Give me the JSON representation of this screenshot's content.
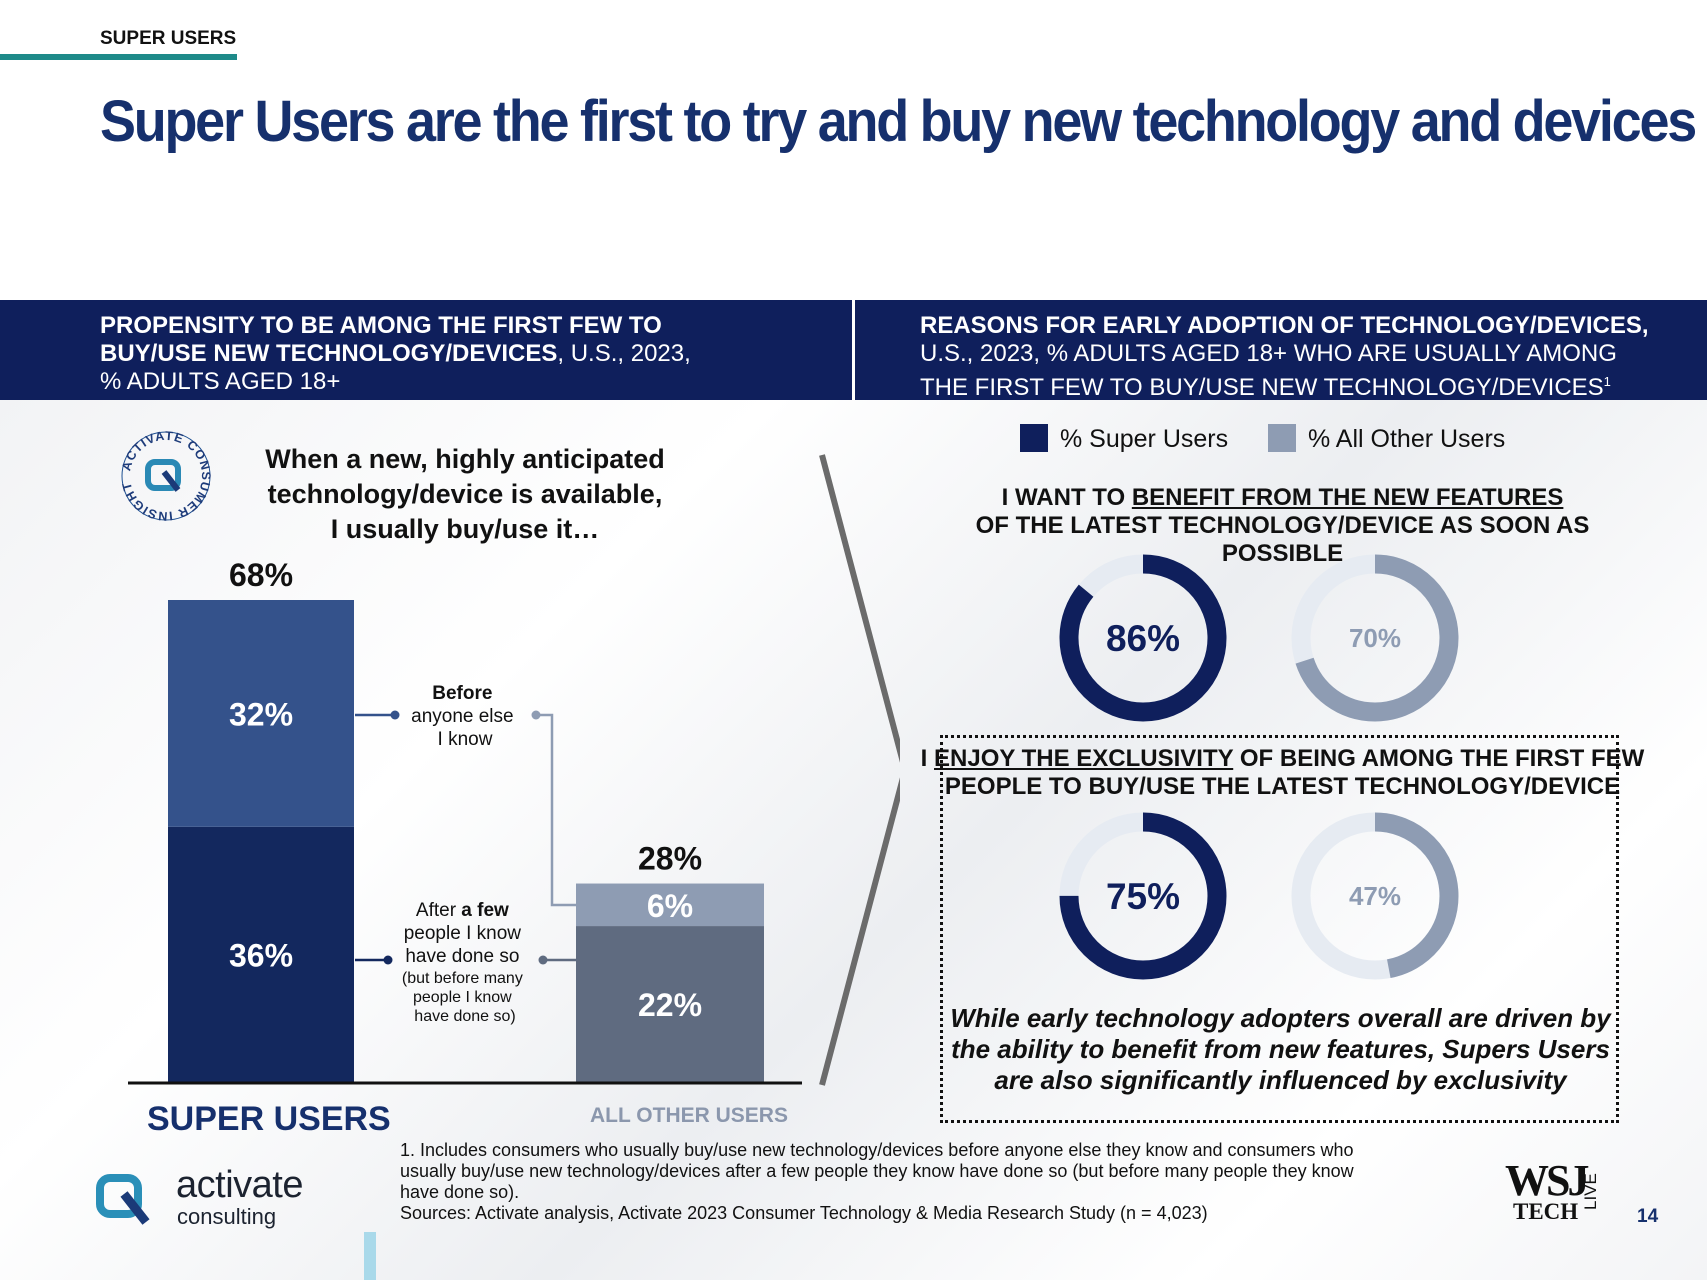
{
  "section_tag": "SUPER USERS",
  "title": "Super Users are the first to try and buy new technology and devices",
  "left_header": {
    "line1_bold": "PROPENSITY TO BE AMONG THE FIRST FEW TO",
    "line2_bold": "BUY/USE NEW TECHNOLOGY/DEVICES",
    "line2_rest": ", U.S., 2023,",
    "line3": "% ADULTS AGED 18+"
  },
  "right_header": {
    "line1_bold": "REASONS FOR EARLY ADOPTION OF TECHNOLOGY/DEVICES,",
    "line2": "U.S., 2023, % ADULTS AGED 18+ WHO ARE USUALLY AMONG",
    "line3": "THE FIRST FEW TO BUY/USE NEW TECHNOLOGY/DEVICES",
    "line3_sup": "1"
  },
  "badge": {
    "text": "ACTIVATE CONSUMER INSIGHT"
  },
  "question": {
    "line1": "When a new, highly anticipated",
    "line2": "technology/device is available,",
    "line3": "I usually buy/use it…"
  },
  "annotations": {
    "before_bold": "Before",
    "before_rest1": "anyone else",
    "before_rest2": "I know",
    "after_a": "After ",
    "after_bold": "a few",
    "after_line2": "people I know",
    "after_line3": "have done so",
    "after_small1": "(but before many",
    "after_small2": "people I know",
    "after_small3": "have done so)"
  },
  "legend": {
    "super": "% Super Users",
    "other": "% All Other Users",
    "super_color": "#0f1f5c",
    "other_color": "#8e9cb3"
  },
  "statement1": {
    "pre": "I WANT TO ",
    "underlined": "BENEFIT FROM THE NEW FEATURES",
    "line2": "OF THE LATEST TECHNOLOGY/DEVICE AS SOON AS POSSIBLE"
  },
  "statement2": {
    "pre": "I ",
    "underlined": "ENJOY THE EXCLUSIVITY",
    "post": " OF BEING AMONG THE FIRST FEW",
    "line2": "PEOPLE TO BUY/USE THE LATEST TECHNOLOGY/DEVICE"
  },
  "italic_note": {
    "line1": "While early technology adopters overall are driven by",
    "line2": "the ability to benefit from new features, Supers Users",
    "line3": "are also significantly influenced by exclusivity"
  },
  "footnote": {
    "line1": "1. Includes consumers who usually buy/use new technology/devices before anyone else they know and consumers who",
    "line2": "usually buy/use new technology/devices after a few people they know have done so (but before many people they know",
    "line3": "have done so).",
    "line4": "Sources: Activate analysis, Activate 2023 Consumer Technology & Media Research Study (n = 4,023)"
  },
  "logo": {
    "line1": "activate",
    "line2": "consulting"
  },
  "wsj": {
    "line1": "WSJ",
    "line2": "TECH",
    "vertical": "LIVE"
  },
  "page_number": "14",
  "chart_data": [
    {
      "type": "bar",
      "stacked": true,
      "categories": [
        "SUPER USERS",
        "ALL OTHER USERS"
      ],
      "series": [
        {
          "name": "After a few people I know have done so (but before many people I know have done so)",
          "values": [
            36,
            22
          ],
          "labels": [
            "36%",
            "22%"
          ],
          "colors": [
            "#13285e",
            "#5f6b80"
          ]
        },
        {
          "name": "Before anyone else I know",
          "values": [
            32,
            6
          ],
          "labels": [
            "32%",
            "6%"
          ],
          "colors": [
            "#34528b",
            "#8e9cb3"
          ]
        }
      ],
      "totals": [
        68,
        28
      ],
      "total_labels": [
        "68%",
        "28%"
      ],
      "ylim": [
        0,
        68
      ]
    },
    {
      "type": "pie",
      "subtype": "donut",
      "title": "I WANT TO BENEFIT FROM THE NEW FEATURES OF THE LATEST TECHNOLOGY/DEVICE AS SOON AS POSSIBLE",
      "series": [
        {
          "name": "% Super Users",
          "value": 86,
          "label": "86%",
          "color": "#0f1f5c"
        },
        {
          "name": "% All Other Users",
          "value": 70,
          "label": "70%",
          "color": "#8e9cb3"
        }
      ]
    },
    {
      "type": "pie",
      "subtype": "donut",
      "title": "I ENJOY THE EXCLUSIVITY OF BEING AMONG THE FIRST FEW PEOPLE TO BUY/USE THE LATEST TECHNOLOGY/DEVICE",
      "series": [
        {
          "name": "% Super Users",
          "value": 75,
          "label": "75%",
          "color": "#0f1f5c"
        },
        {
          "name": "% All Other Users",
          "value": 47,
          "label": "47%",
          "color": "#8e9cb3"
        }
      ]
    }
  ]
}
